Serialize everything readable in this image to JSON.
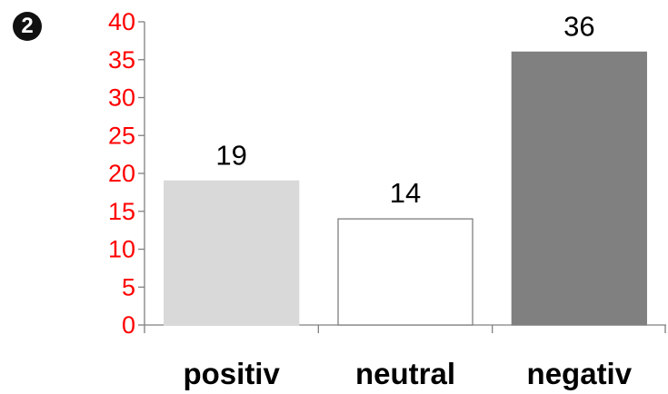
{
  "marker": {
    "text": "2"
  },
  "chart_data": {
    "type": "bar",
    "categories": [
      "positiv",
      "neutral",
      "negativ"
    ],
    "values": [
      19,
      14,
      36
    ],
    "data_labels": [
      "19",
      "14",
      "36"
    ],
    "yticks": [
      "0",
      "5",
      "10",
      "15",
      "20",
      "25",
      "30",
      "35",
      "40"
    ],
    "ylim": [
      0,
      40
    ],
    "title": "",
    "xlabel": "",
    "ylabel": "",
    "grid": false,
    "colors": {
      "bars": [
        "#d9d9d9",
        "#ffffff",
        "#808080"
      ],
      "bar_stroke": [
        "#d9d9d9",
        "#7f7f7f",
        "#808080"
      ],
      "ytick_labels": "#ff0000",
      "axis": "#808080",
      "text": "#000000"
    }
  }
}
